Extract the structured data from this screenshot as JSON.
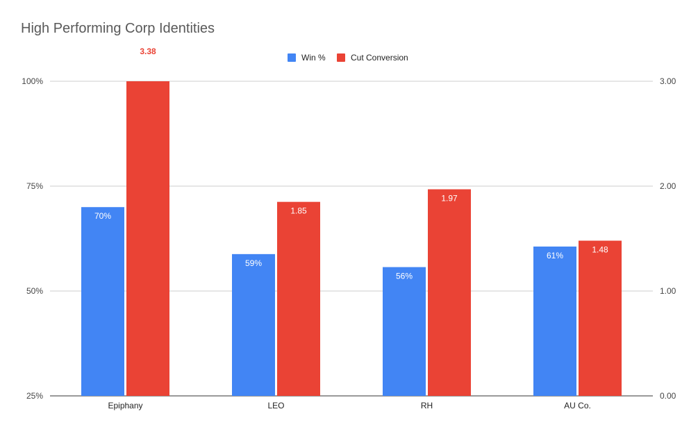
{
  "chart_data": {
    "type": "bar",
    "title": "High Performing Corp Identities",
    "categories": [
      "Epiphany",
      "LEO",
      "RH",
      "AU Co."
    ],
    "series": [
      {
        "name": "Win %",
        "axis": "left",
        "color": "#4285f4",
        "values": [
          0.7,
          0.588,
          0.557,
          0.606
        ],
        "labels": [
          "70%",
          "59%",
          "56%",
          "61%"
        ]
      },
      {
        "name": "Cut Conversion",
        "axis": "right",
        "color": "#ea4335",
        "values": [
          3.38,
          1.85,
          1.97,
          1.48
        ],
        "labels": [
          "3.38",
          "1.85",
          "1.97",
          "1.48"
        ]
      }
    ],
    "left_axis": {
      "min": 0.25,
      "max": 1.0,
      "ticks": [
        0.25,
        0.5,
        0.75,
        1.0
      ],
      "tick_labels": [
        "25%",
        "50%",
        "75%",
        "100%"
      ]
    },
    "right_axis": {
      "min": 0,
      "max": 3.0,
      "ticks": [
        0,
        1,
        2,
        3
      ],
      "tick_labels": [
        "0.00",
        "1.00",
        "2.00",
        "3.00"
      ]
    },
    "legend_position": "top-center",
    "grid": true,
    "xlabel": "",
    "ylabel": ""
  }
}
